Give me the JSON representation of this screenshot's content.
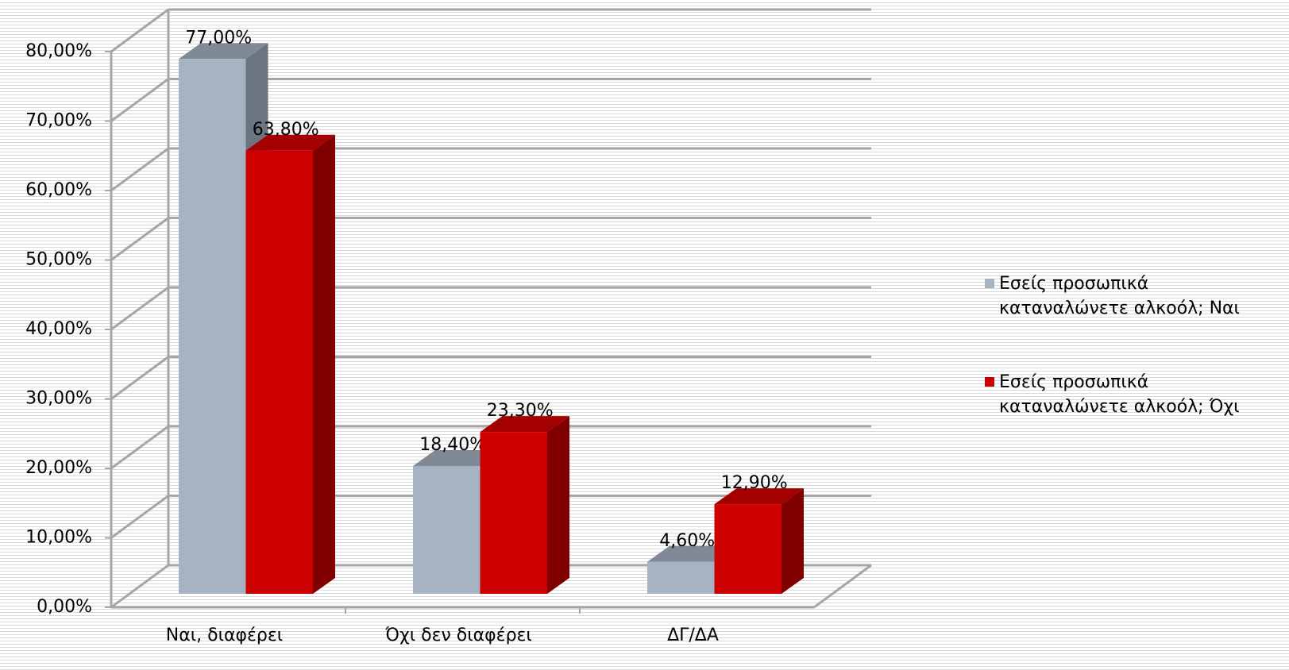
{
  "chart_data": {
    "type": "bar3d",
    "categories": [
      "Ναι, διαφέρει",
      "Όχι δεν διαφέρει",
      "ΔΓ/ΔΑ"
    ],
    "series": [
      {
        "name": "Εσείς προσωπικά καταναλώνετε αλκοόλ; Ναι",
        "color": "#a5b3c3",
        "values": [
          77,
          18.4,
          4.6
        ],
        "value_labels": [
          "77,00%",
          "18,40%",
          "4,60%"
        ]
      },
      {
        "name": "Εσείς προσωπικά καταναλώνετε αλκοόλ; Όχι",
        "color": "#cc0000",
        "values": [
          63.8,
          23.3,
          12.9
        ],
        "value_labels": [
          "63,80%",
          "23,30%",
          "12,90%"
        ]
      }
    ],
    "ylim": [
      0,
      80
    ],
    "yticks": [
      {
        "value": 0,
        "label": "0,00%"
      },
      {
        "value": 10,
        "label": "10,00%"
      },
      {
        "value": 20,
        "label": "20,00%"
      },
      {
        "value": 30,
        "label": "30,00%"
      },
      {
        "value": 40,
        "label": "40,00%"
      },
      {
        "value": 50,
        "label": "50,00%"
      },
      {
        "value": 60,
        "label": "60,00%"
      },
      {
        "value": 70,
        "label": "70,00%"
      },
      {
        "value": 80,
        "label": "80,00%"
      }
    ],
    "grid": true,
    "legend_position": "right"
  }
}
